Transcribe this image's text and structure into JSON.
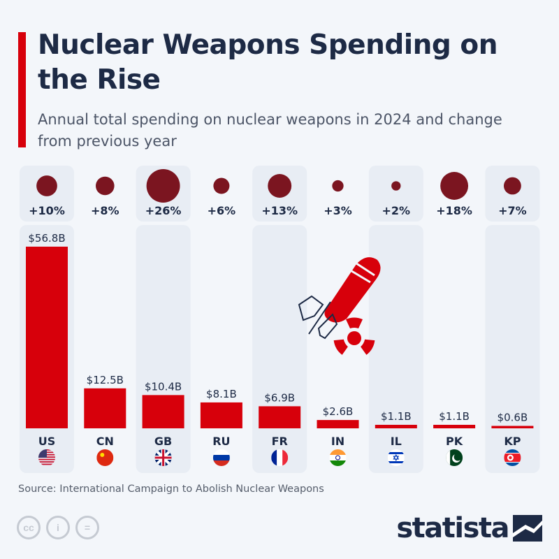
{
  "header": {
    "title": "Nuclear Weapons Spending on the Rise",
    "subtitle": "Annual total spending on nuclear weapons in 2024 and change from previous year"
  },
  "chart_data": {
    "type": "bar",
    "title": "Nuclear Weapons Spending on the Rise",
    "subtitle": "Annual total spending on nuclear weapons in 2024 and change from previous year",
    "categories": [
      "US",
      "CN",
      "GB",
      "RU",
      "FR",
      "IN",
      "IL",
      "PK",
      "KP"
    ],
    "values": [
      56.8,
      12.5,
      10.4,
      8.1,
      6.9,
      2.6,
      1.1,
      1.1,
      0.6
    ],
    "value_labels": [
      "$56.8B",
      "$12.5B",
      "$10.4B",
      "$8.1B",
      "$6.9B",
      "$2.6B",
      "$1.1B",
      "$1.1B",
      "$0.6B"
    ],
    "unit": "billion USD",
    "change_pct": [
      10,
      8,
      26,
      6,
      13,
      3,
      2,
      18,
      7
    ],
    "change_labels": [
      "+10%",
      "+8%",
      "+26%",
      "+6%",
      "+13%",
      "+3%",
      "+2%",
      "+18%",
      "+7%"
    ],
    "bar_color": "#d7000b",
    "bubble_color": "#7b1520",
    "grid": false
  },
  "footer": {
    "source": "Source: International Campaign to Abolish Nuclear Weapons",
    "logo": "statista",
    "license_icons": [
      "cc-icon",
      "attribution-icon",
      "no-derivatives-icon"
    ]
  }
}
